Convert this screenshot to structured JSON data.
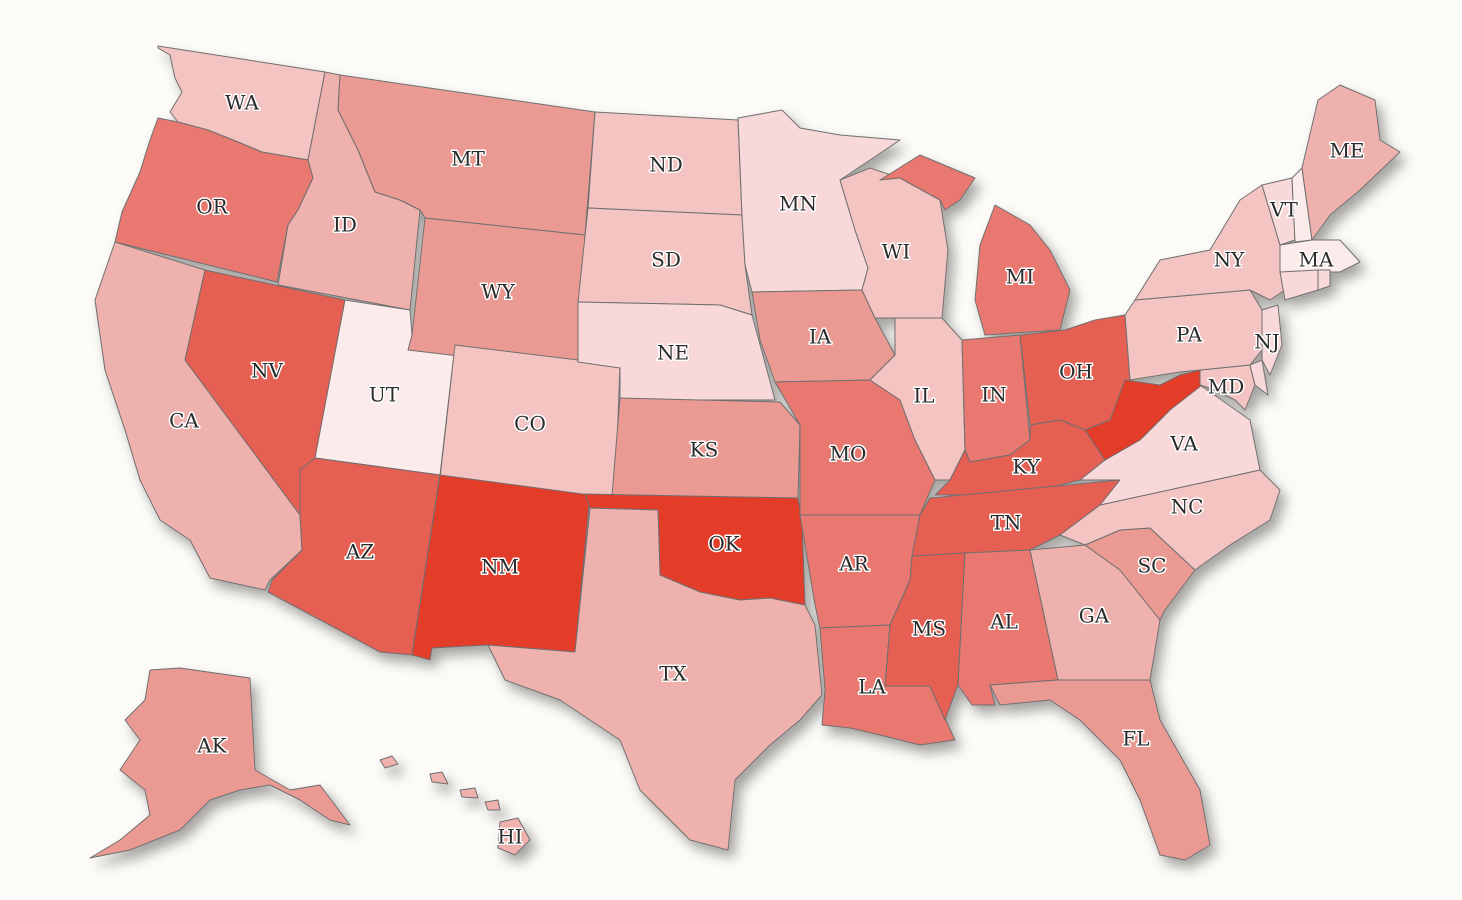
{
  "map": {
    "type": "choropleth",
    "region": "United States",
    "scale": {
      "levels": 8,
      "colors": [
        "#fcebeb",
        "#f8d8d8",
        "#f3c4c2",
        "#efb1ad",
        "#eb9a93",
        "#e8786f",
        "#e55e53",
        "#e33c2c"
      ]
    },
    "states": [
      {
        "code": "WA",
        "level": 2
      },
      {
        "code": "OR",
        "level": 5
      },
      {
        "code": "CA",
        "level": 3
      },
      {
        "code": "ID",
        "level": 3
      },
      {
        "code": "NV",
        "level": 6
      },
      {
        "code": "UT",
        "level": 0
      },
      {
        "code": "AZ",
        "level": 6
      },
      {
        "code": "MT",
        "level": 4
      },
      {
        "code": "WY",
        "level": 4
      },
      {
        "code": "CO",
        "level": 2
      },
      {
        "code": "NM",
        "level": 7
      },
      {
        "code": "ND",
        "level": 2
      },
      {
        "code": "SD",
        "level": 2
      },
      {
        "code": "NE",
        "level": 1
      },
      {
        "code": "KS",
        "level": 4
      },
      {
        "code": "OK",
        "level": 7
      },
      {
        "code": "TX",
        "level": 3
      },
      {
        "code": "MN",
        "level": 1
      },
      {
        "code": "IA",
        "level": 4
      },
      {
        "code": "MO",
        "level": 5
      },
      {
        "code": "AR",
        "level": 5
      },
      {
        "code": "LA",
        "level": 5
      },
      {
        "code": "WI",
        "level": 2
      },
      {
        "code": "IL",
        "level": 2
      },
      {
        "code": "MI",
        "level": 5
      },
      {
        "code": "IN",
        "level": 5
      },
      {
        "code": "OH",
        "level": 6
      },
      {
        "code": "KY",
        "level": 6
      },
      {
        "code": "TN",
        "level": 6
      },
      {
        "code": "MS",
        "level": 6
      },
      {
        "code": "AL",
        "level": 5
      },
      {
        "code": "GA",
        "level": 3
      },
      {
        "code": "FL",
        "level": 4
      },
      {
        "code": "SC",
        "level": 4
      },
      {
        "code": "NC",
        "level": 2
      },
      {
        "code": "VA",
        "level": 1
      },
      {
        "code": "WV",
        "level": 7
      },
      {
        "code": "MD",
        "level": 2
      },
      {
        "code": "PA",
        "level": 2
      },
      {
        "code": "NY",
        "level": 2
      },
      {
        "code": "NJ",
        "level": 1
      },
      {
        "code": "VT",
        "level": 1
      },
      {
        "code": "NH",
        "level": 0
      },
      {
        "code": "MA",
        "level": 0
      },
      {
        "code": "CT",
        "level": 1
      },
      {
        "code": "RI",
        "level": 1
      },
      {
        "code": "DE",
        "level": 1
      },
      {
        "code": "ME",
        "level": 3
      },
      {
        "code": "AK",
        "level": 4
      },
      {
        "code": "HI",
        "level": 3
      }
    ],
    "labels": {
      "WA": "WA",
      "OR": "OR",
      "CA": "CA",
      "ID": "ID",
      "NV": "NV",
      "UT": "UT",
      "AZ": "AZ",
      "MT": "MT",
      "WY": "WY",
      "CO": "CO",
      "NM": "NM",
      "ND": "ND",
      "SD": "SD",
      "NE": "NE",
      "KS": "KS",
      "OK": "OK",
      "TX": "TX",
      "MN": "MN",
      "IA": "IA",
      "MO": "MO",
      "AR": "AR",
      "LA": "LA",
      "WI": "WI",
      "IL": "IL",
      "MI": "MI",
      "IN": "IN",
      "OH": "OH",
      "KY": "KY",
      "TN": "TN",
      "MS": "MS",
      "AL": "AL",
      "GA": "GA",
      "FL": "FL",
      "SC": "SC",
      "NC": "NC",
      "VA": "VA",
      "MD": "MD",
      "PA": "PA",
      "NY": "NY",
      "NJ": "NJ",
      "VT": "VT",
      "MA": "MA",
      "ME": "ME",
      "AK": "AK",
      "HI": "HI"
    }
  }
}
